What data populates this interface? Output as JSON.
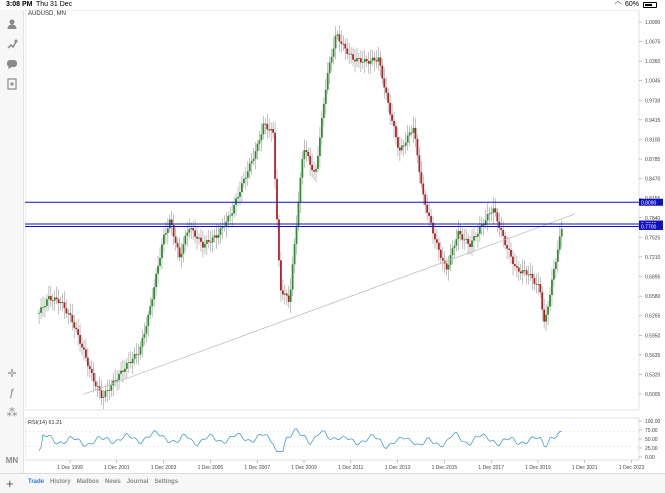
{
  "status": {
    "time": "3:08 PM",
    "date": "Thu 31 Dec",
    "battery": "60%"
  },
  "chart": {
    "symbol": "AUDUSD, MN",
    "price_levels": [
      "1.0990",
      "1.0675",
      "1.0360",
      "1.0045",
      "0.9730",
      "0.9415",
      "0.9100",
      "0.8785",
      "0.8470",
      "0.8155",
      "0.7840",
      "0.7525",
      "0.7210",
      "0.6895",
      "0.6580",
      "0.6265",
      "0.5950",
      "0.5635",
      "0.5320",
      "0.5005"
    ],
    "level_tags": [
      "0.8090",
      "0.7740",
      "0.7700"
    ],
    "rsi_label": "RSI(14) 61.21",
    "rsi_levels": [
      "100.00",
      "75.00",
      "50.00",
      "25.00",
      "0.00"
    ],
    "date_labels": [
      "1 Dec 1999",
      "1 Dec 2001",
      "1 Dec 2003",
      "1 Dec 2005",
      "1 Dec 2007",
      "1 Dec 2009",
      "1 Dec 2011",
      "1 Dec 2013",
      "1 Dec 2015",
      "1 Dec 2017",
      "1 Dec 2019",
      "1 Dec 2021",
      "1 Dec 2023"
    ],
    "colors": {
      "bull": "#2a8f2a",
      "bear": "#b22222",
      "hline": "#1010c0",
      "trend": "#bdbdbd",
      "rsi": "#2f8fdc"
    }
  },
  "sidebar": {
    "tools": [
      {
        "name": "crosshair-tool-icon",
        "glyph": "✛"
      },
      {
        "name": "indicator-tool-icon",
        "glyph": "ƒ"
      },
      {
        "name": "objects-tool-icon",
        "glyph": "⁂"
      },
      {
        "name": "timeframe-button",
        "glyph": "MN"
      }
    ]
  },
  "tabs": [
    "Trade",
    "History",
    "Mailbox",
    "News",
    "Journal",
    "Settings"
  ],
  "active_tab": "Trade"
}
